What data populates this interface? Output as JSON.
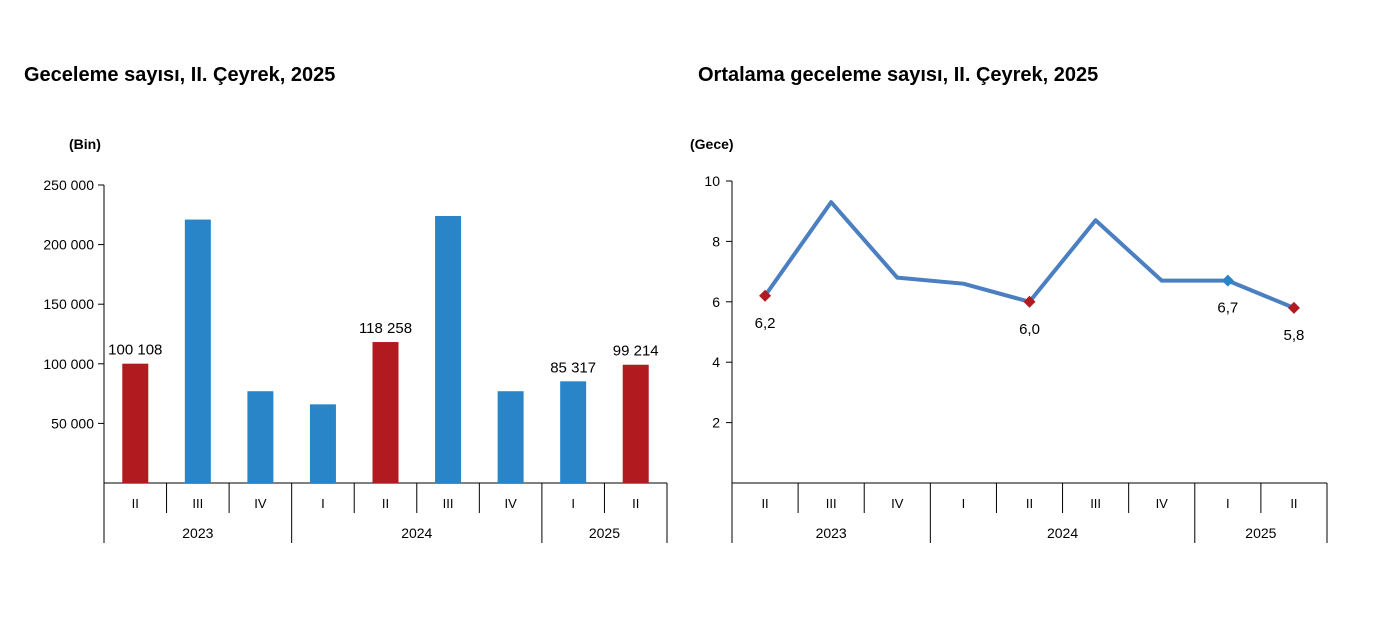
{
  "chart_data": [
    {
      "type": "bar",
      "title": "Geceleme sayısı, II. Çeyrek, 2025",
      "unit_label": "(Bin)",
      "categories": [
        "II",
        "III",
        "IV",
        "I",
        "II",
        "III",
        "IV",
        "I",
        "II"
      ],
      "year_groups": [
        {
          "label": "2023",
          "count": 3
        },
        {
          "label": "2024",
          "count": 4
        },
        {
          "label": "2025",
          "count": 2
        }
      ],
      "values": [
        100108,
        221000,
        77000,
        66000,
        118258,
        224000,
        77000,
        85317,
        99214
      ],
      "data_labels": [
        "100 108",
        "",
        "",
        "",
        "118 258",
        "",
        "",
        "85 317",
        "99 214"
      ],
      "highlight": [
        true,
        false,
        false,
        false,
        true,
        false,
        false,
        false,
        true
      ],
      "y_ticks": [
        {
          "value": 50000,
          "label": "50 000"
        },
        {
          "value": 100000,
          "label": "100 000"
        },
        {
          "value": 150000,
          "label": "150 000"
        },
        {
          "value": 200000,
          "label": "200 000"
        },
        {
          "value": 250000,
          "label": "250 000"
        }
      ],
      "ylim": [
        0,
        250000
      ],
      "colors": {
        "highlight": "#b11b1f",
        "normal": "#2a85c8"
      },
      "grid": false
    },
    {
      "type": "line",
      "title": "Ortalama geceleme sayısı, II. Çeyrek, 2025",
      "unit_label": "(Gece)",
      "categories": [
        "II",
        "III",
        "IV",
        "I",
        "II",
        "III",
        "IV",
        "I",
        "II"
      ],
      "year_groups": [
        {
          "label": "2023",
          "count": 3
        },
        {
          "label": "2024",
          "count": 4
        },
        {
          "label": "2025",
          "count": 2
        }
      ],
      "values": [
        6.2,
        9.3,
        6.8,
        6.6,
        6.0,
        8.7,
        6.7,
        6.7,
        5.8
      ],
      "data_labels": [
        "6,2",
        "",
        "",
        "",
        "6,0",
        "",
        "",
        "6,7",
        "5,8"
      ],
      "markers": [
        "red",
        "none",
        "none",
        "none",
        "red",
        "none",
        "none",
        "blue",
        "red"
      ],
      "y_ticks": [
        {
          "value": 2,
          "label": "2"
        },
        {
          "value": 4,
          "label": "4"
        },
        {
          "value": 6,
          "label": "6"
        },
        {
          "value": 8,
          "label": "8"
        },
        {
          "value": 10,
          "label": "10"
        }
      ],
      "ylim": [
        0,
        10
      ],
      "colors": {
        "line": "#4a7fc1",
        "marker_red": "#b11b1f",
        "marker_blue": "#2a85c8"
      },
      "grid": false
    }
  ]
}
